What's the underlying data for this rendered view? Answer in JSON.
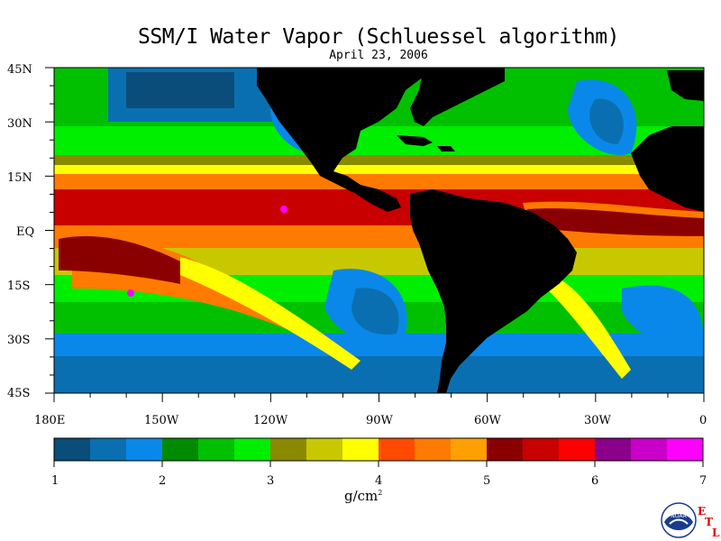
{
  "title": "SSM/I Water Vapor (Schluessel algorithm)",
  "subtitle": "April 23, 2006",
  "units": "g/cm",
  "units_exponent": "2",
  "lat_labels": [
    "45N",
    "30N",
    "15N",
    "EQ",
    "15S",
    "30S",
    "45S"
  ],
  "lon_labels": [
    "180E",
    "150W",
    "120W",
    "90W",
    "60W",
    "30W",
    "0"
  ],
  "colorbar": {
    "labels": [
      "1",
      "2",
      "3",
      "4",
      "5",
      "6",
      "7"
    ],
    "colors": [
      "#0a4d7a",
      "#0a6fb0",
      "#0a88ea",
      "#008a00",
      "#00c000",
      "#00ee00",
      "#8a8a00",
      "#c8c800",
      "#ffff00",
      "#ff4a00",
      "#ff7a00",
      "#ffa000",
      "#8a0000",
      "#c80000",
      "#ff0000",
      "#8a008a",
      "#c800c8",
      "#ff00ff"
    ]
  },
  "map_colors": {
    "land": "#000000",
    "low_deep": "#0a4d7a",
    "low": "#0a6fb0",
    "low_light": "#0a88ea",
    "mid_dark": "#008a00",
    "mid": "#00c000",
    "mid_light": "#00ee00",
    "olive": "#8a8a00",
    "yellow_olive": "#c8c800",
    "yellow": "#ffff00",
    "orange_red": "#ff4a00",
    "orange": "#ff7a00",
    "orange_light": "#ffa000",
    "dark_red": "#8a0000",
    "red": "#c80000",
    "magenta": "#ff00ff"
  },
  "logo": {
    "agency": "NOAA",
    "lab_letters": [
      "E",
      "T",
      "L"
    ]
  }
}
